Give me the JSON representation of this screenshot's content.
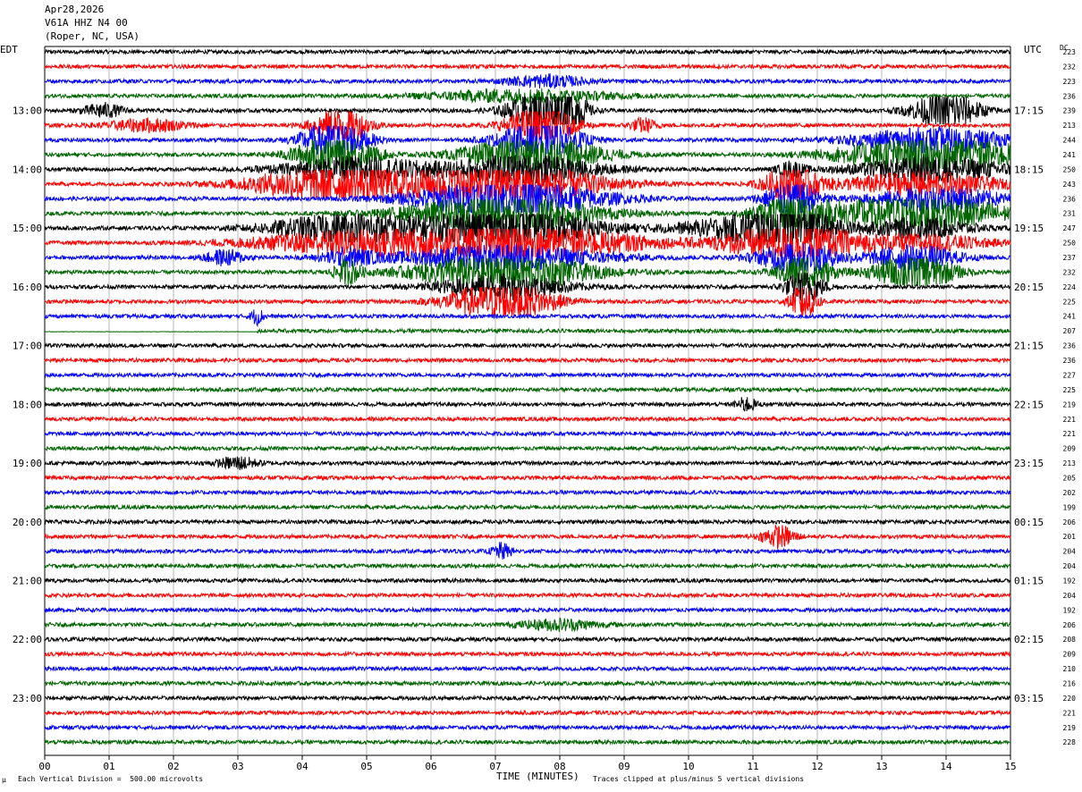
{
  "header": {
    "date": "Apr28,2026",
    "station": "V61A HHZ N4 00",
    "location": "(Roper, NC, USA)"
  },
  "left_tz": "EDT",
  "right_tz": "UTC",
  "dc_label": "DC",
  "footer": {
    "left_mark": "µ",
    "scale_note": "Each Vertical Division =  500.00 microvolts",
    "xlabel": "TIME (MINUTES)",
    "clip_note": "Traces clipped at plus/minus 5 vertical divisions"
  },
  "chart_data": {
    "type": "line",
    "title": "V61A HHZ N4 00",
    "xlabel": "TIME (MINUTES)",
    "ylabel": "",
    "xlim": [
      0,
      15
    ],
    "x_ticks": [
      "00",
      "01",
      "02",
      "03",
      "04",
      "05",
      "06",
      "07",
      "08",
      "09",
      "10",
      "11",
      "12",
      "13",
      "14",
      "15"
    ],
    "trace_colors": [
      "#000000",
      "#ff0000",
      "#0000ff",
      "#006400"
    ],
    "traces_per_hour": 4,
    "trace_count": 48,
    "edt_hour_labels": [
      "13:00",
      "14:00",
      "15:00",
      "16:00",
      "17:00",
      "18:00",
      "19:00",
      "20:00",
      "21:00",
      "22:00",
      "23:00"
    ],
    "utc_hour_labels": [
      "17:15",
      "18:15",
      "19:15",
      "20:15",
      "21:15",
      "22:15",
      "23:15",
      "00:15",
      "01:15",
      "02:15",
      "03:15"
    ],
    "dc_offsets": [
      223,
      232,
      223,
      236,
      239,
      213,
      244,
      241,
      250,
      243,
      236,
      231,
      247,
      250,
      237,
      232,
      224,
      225,
      241,
      207,
      236,
      236,
      227,
      225,
      219,
      221,
      221,
      209,
      213,
      205,
      202,
      199,
      206,
      201,
      204,
      204,
      192,
      204,
      192,
      206,
      208,
      209,
      210,
      216,
      220,
      221,
      219,
      228
    ],
    "events": [
      {
        "trace": 4,
        "minute": 0.9,
        "width": 0.3,
        "amp": 1.8
      },
      {
        "trace": 5,
        "minute": 1.6,
        "width": 0.6,
        "amp": 1.6
      },
      {
        "trace": 5,
        "minute": 9.3,
        "width": 0.2,
        "amp": 1.8
      },
      {
        "trace": 5,
        "minute": 4.6,
        "width": 0.4,
        "amp": 5
      },
      {
        "trace": 6,
        "minute": 4.5,
        "width": 0.5,
        "amp": 5
      },
      {
        "trace": 7,
        "minute": 4.5,
        "width": 0.6,
        "amp": 5
      },
      {
        "trace": 8,
        "minute": 4.8,
        "width": 1.1,
        "amp": 3
      },
      {
        "trace": 9,
        "minute": 4.6,
        "width": 1.3,
        "amp": 5
      },
      {
        "trace": 12,
        "minute": 4.6,
        "width": 1.1,
        "amp": 3.5
      },
      {
        "trace": 13,
        "minute": 4.4,
        "width": 1.4,
        "amp": 2
      },
      {
        "trace": 14,
        "minute": 4.7,
        "width": 0.4,
        "amp": 2
      },
      {
        "trace": 15,
        "minute": 4.7,
        "width": 0.2,
        "amp": 3
      },
      {
        "trace": 4,
        "minute": 7.7,
        "width": 0.5,
        "amp": 5
      },
      {
        "trace": 4,
        "minute": 8.2,
        "width": 0.2,
        "amp": 5
      },
      {
        "trace": 5,
        "minute": 7.7,
        "width": 0.5,
        "amp": 5
      },
      {
        "trace": 6,
        "minute": 7.7,
        "width": 0.6,
        "amp": 5
      },
      {
        "trace": 7,
        "minute": 7.6,
        "width": 1.0,
        "amp": 5
      },
      {
        "trace": 8,
        "minute": 7.4,
        "width": 1.2,
        "amp": 3.5
      },
      {
        "trace": 9,
        "minute": 7.2,
        "width": 1.4,
        "amp": 5
      },
      {
        "trace": 10,
        "minute": 7.2,
        "width": 1.4,
        "amp": 5
      },
      {
        "trace": 11,
        "minute": 7.1,
        "width": 1.4,
        "amp": 5
      },
      {
        "trace": 12,
        "minute": 7.1,
        "width": 1.4,
        "amp": 5
      },
      {
        "trace": 13,
        "minute": 7.1,
        "width": 2.0,
        "amp": 5
      },
      {
        "trace": 14,
        "minute": 7.1,
        "width": 1.6,
        "amp": 3
      },
      {
        "trace": 15,
        "minute": 7.1,
        "width": 1.3,
        "amp": 5
      },
      {
        "trace": 16,
        "minute": 7.1,
        "width": 1.0,
        "amp": 3
      },
      {
        "trace": 17,
        "minute": 7.1,
        "width": 0.8,
        "amp": 5
      },
      {
        "trace": 2,
        "minute": 7.8,
        "width": 0.6,
        "amp": 1.5
      },
      {
        "trace": 3,
        "minute": 7.4,
        "width": 1.4,
        "amp": 1.6
      },
      {
        "trace": 12,
        "minute": 11.0,
        "width": 1.1,
        "amp": 3
      },
      {
        "trace": 8,
        "minute": 11.6,
        "width": 0.2,
        "amp": 2
      },
      {
        "trace": 9,
        "minute": 11.6,
        "width": 0.4,
        "amp": 5
      },
      {
        "trace": 10,
        "minute": 11.6,
        "width": 0.4,
        "amp": 5
      },
      {
        "trace": 11,
        "minute": 11.6,
        "width": 0.5,
        "amp": 5
      },
      {
        "trace": 12,
        "minute": 11.6,
        "width": 0.6,
        "amp": 5
      },
      {
        "trace": 13,
        "minute": 11.6,
        "width": 1.0,
        "amp": 5
      },
      {
        "trace": 14,
        "minute": 11.7,
        "width": 0.6,
        "amp": 4
      },
      {
        "trace": 15,
        "minute": 11.8,
        "width": 0.4,
        "amp": 5
      },
      {
        "trace": 16,
        "minute": 11.8,
        "width": 0.3,
        "amp": 4
      },
      {
        "trace": 17,
        "minute": 11.8,
        "width": 0.2,
        "amp": 5
      },
      {
        "trace": 6,
        "minute": 13.8,
        "width": 1.2,
        "amp": 3
      },
      {
        "trace": 7,
        "minute": 13.8,
        "width": 1.4,
        "amp": 5
      },
      {
        "trace": 8,
        "minute": 13.8,
        "width": 1.2,
        "amp": 3
      },
      {
        "trace": 9,
        "minute": 13.6,
        "width": 1.2,
        "amp": 3
      },
      {
        "trace": 10,
        "minute": 13.9,
        "width": 1.0,
        "amp": 3
      },
      {
        "trace": 11,
        "minute": 13.5,
        "width": 1.4,
        "amp": 5
      },
      {
        "trace": 12,
        "minute": 13.6,
        "width": 0.8,
        "amp": 2.5
      },
      {
        "trace": 13,
        "minute": 13.7,
        "width": 1.0,
        "amp": 2
      },
      {
        "trace": 14,
        "minute": 13.5,
        "width": 0.7,
        "amp": 3
      },
      {
        "trace": 15,
        "minute": 13.5,
        "width": 0.6,
        "amp": 5
      },
      {
        "trace": 4,
        "minute": 14.0,
        "width": 0.5,
        "amp": 5
      },
      {
        "trace": 14,
        "minute": 2.8,
        "width": 0.3,
        "amp": 2
      },
      {
        "trace": 18,
        "minute": 3.3,
        "width": 0.1,
        "amp": 2
      },
      {
        "trace": 24,
        "minute": 10.9,
        "width": 0.15,
        "amp": 1.8
      },
      {
        "trace": 28,
        "minute": 3.0,
        "width": 0.3,
        "amp": 1.6
      },
      {
        "trace": 33,
        "minute": 11.4,
        "width": 0.25,
        "amp": 2.8
      },
      {
        "trace": 34,
        "minute": 7.1,
        "width": 0.15,
        "amp": 2
      },
      {
        "trace": 39,
        "minute": 8.0,
        "width": 0.6,
        "amp": 1.4
      }
    ],
    "flatline": {
      "trace": 19,
      "from": 0,
      "to": 3.3
    }
  }
}
